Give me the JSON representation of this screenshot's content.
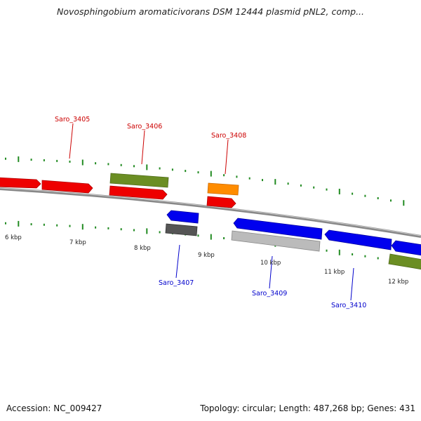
{
  "title": "Novosphingobium aromaticivorans DSM 12444 plasmid pNL2, comp...",
  "footer": {
    "accession": "Accession: NC_009427",
    "summary": "Topology: circular; Length: 487,268 bp; Genes: 431"
  },
  "colors": {
    "forward_red": "#ee0000",
    "forward_olive": "#6b8e23",
    "forward_orange": "#ff8c00",
    "reverse_blue": "#0000ee",
    "reverse_gray_dark": "#555555",
    "reverse_gray_light": "#bbbbbb",
    "label_forward": "#cc0000",
    "label_reverse": "#0000cc",
    "tick_green": "#228b22",
    "backbone": "#888888"
  },
  "kbp_labels": [
    "6 kbp",
    "7 kbp",
    "8 kbp",
    "9 kbp",
    "10 kbp",
    "11 kbp",
    "12 kbp"
  ],
  "gene_labels": {
    "forward": [
      "Saro_3405",
      "Saro_3406",
      "Saro_3408"
    ],
    "reverse": [
      "Saro_3407",
      "Saro_3409",
      "Saro_3410"
    ]
  }
}
